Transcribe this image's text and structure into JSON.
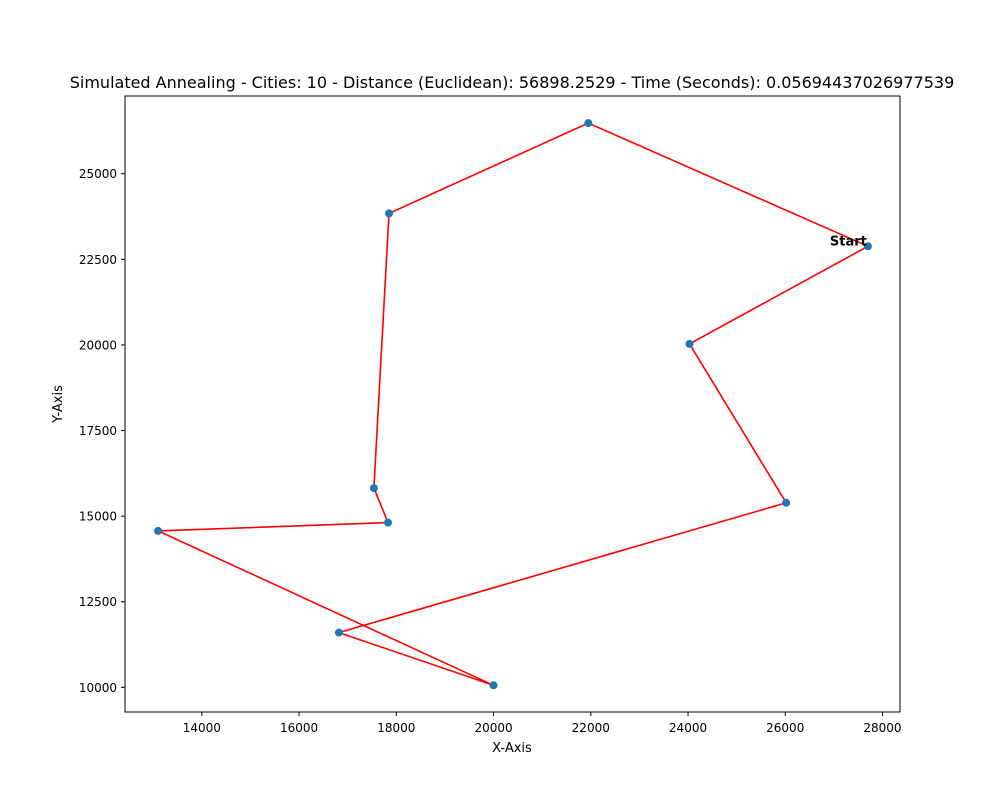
{
  "chart_data": {
    "type": "scatter",
    "title": "Simulated Annealing - Cities: 10 - Distance (Euclidean): 56898.2529 - Time (Seconds): 0.05694437026977539",
    "xlabel": "X-Axis",
    "ylabel": "Y-Axis",
    "xlim": [
      12420,
      28360
    ],
    "ylim": [
      9280,
      27270
    ],
    "x_ticks": [
      14000,
      16000,
      18000,
      20000,
      22000,
      24000,
      26000,
      28000
    ],
    "y_ticks": [
      10000,
      12500,
      15000,
      17500,
      20000,
      22500,
      25000
    ],
    "grid": false,
    "series": [
      {
        "marker_color": "#1f77b4",
        "line_color": "#ff0000",
        "route": [
          {
            "x": 27700,
            "y": 22880
          },
          {
            "x": 21950,
            "y": 26480
          },
          {
            "x": 17850,
            "y": 23840
          },
          {
            "x": 17540,
            "y": 15820
          },
          {
            "x": 17830,
            "y": 14810
          },
          {
            "x": 13100,
            "y": 14570
          },
          {
            "x": 20000,
            "y": 10060
          },
          {
            "x": 16820,
            "y": 11600
          },
          {
            "x": 26020,
            "y": 15390
          },
          {
            "x": 24030,
            "y": 20030
          },
          {
            "x": 27700,
            "y": 22880
          }
        ]
      }
    ],
    "annotations": [
      {
        "text": "Start",
        "x": 27700,
        "y": 22880,
        "weight": "bold"
      }
    ]
  }
}
